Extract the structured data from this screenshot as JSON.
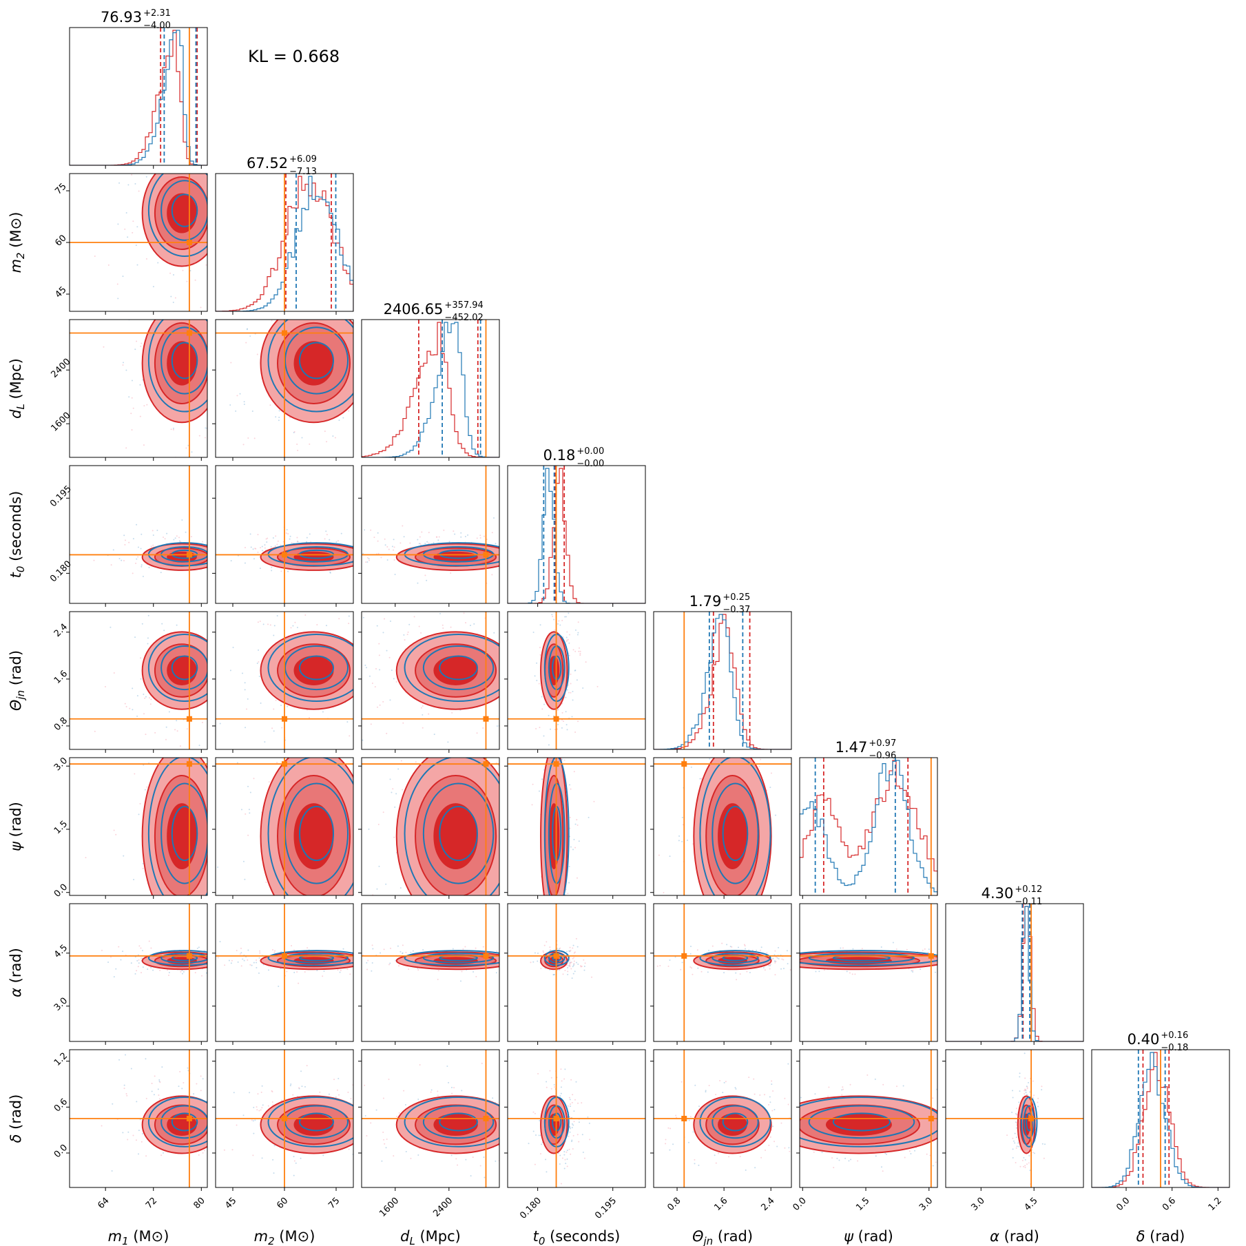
{
  "kl_text": "KL = 0.668",
  "colors": {
    "red": "#d62728",
    "blue": "#1f77b4",
    "truth": "#ff7f0e",
    "red_light": "#f4a6a6",
    "red_mid": "#e87777"
  },
  "chart_data": {
    "type": "corner",
    "kl": 0.668,
    "parameters": [
      {
        "key": "m1",
        "label": "m1 (M⊙)",
        "symbol": "m",
        "sub": "1",
        "unit": "(M⊙)",
        "range": [
          58,
          81
        ],
        "ticks": [
          64,
          72,
          80
        ],
        "tick_labels": [
          "64",
          "72",
          "80"
        ],
        "truth": 78.0
      },
      {
        "key": "m2",
        "label": "m2 (M⊙)",
        "symbol": "m",
        "sub": "2",
        "unit": "(M⊙)",
        "range": [
          40,
          80
        ],
        "ticks": [
          45,
          60,
          75
        ],
        "tick_labels": [
          "45",
          "60",
          "75"
        ],
        "truth": 60.0
      },
      {
        "key": "dL",
        "label": "dL (Mpc)",
        "symbol": "d",
        "sub": "L",
        "unit": "(Mpc)",
        "range": [
          1100,
          3150
        ],
        "ticks": [
          1600,
          2400
        ],
        "tick_labels": [
          "1600",
          "2400"
        ],
        "truth": 2950
      },
      {
        "key": "t0",
        "label": "t0 (seconds)",
        "symbol": "t",
        "sub": "0",
        "unit": "(seconds)",
        "range": [
          0.174,
          0.2015
        ],
        "ticks": [
          0.18,
          0.195
        ],
        "tick_labels": [
          "0.180",
          "0.195"
        ],
        "truth": 0.1837
      },
      {
        "key": "theta",
        "label": "Θjn (rad)",
        "symbol": "Θ",
        "sub": "jn",
        "unit": "(rad)",
        "range": [
          0.4,
          2.75
        ],
        "ticks": [
          0.8,
          1.6,
          2.4
        ],
        "tick_labels": [
          "0.8",
          "1.6",
          "2.4"
        ],
        "truth": 0.92
      },
      {
        "key": "psi",
        "label": "ψ (rad)",
        "symbol": "ψ",
        "sub": "",
        "unit": "(rad)",
        "range": [
          -0.07,
          3.2
        ],
        "ticks": [
          0.0,
          1.5,
          3.0
        ],
        "tick_labels": [
          "0.0",
          "1.5",
          "3.0"
        ],
        "truth": 3.05
      },
      {
        "key": "alpha",
        "label": "α (rad)",
        "symbol": "α",
        "sub": "",
        "unit": "(rad)",
        "range": [
          2.0,
          5.9
        ],
        "ticks": [
          3.0,
          4.5
        ],
        "tick_labels": [
          "3.0",
          "4.5"
        ],
        "truth": 4.42
      },
      {
        "key": "delta",
        "label": "δ (rad)",
        "symbol": "δ",
        "sub": "",
        "unit": "(rad)",
        "range": [
          -0.45,
          1.35
        ],
        "ticks": [
          0.0,
          0.6,
          1.2
        ],
        "tick_labels": [
          "0.0",
          "0.6",
          "1.2"
        ],
        "truth": 0.45
      }
    ],
    "titles": [
      {
        "median": "76.93",
        "plus": "+2.31",
        "minus": "−4.00"
      },
      {
        "median": "67.52",
        "plus": "+6.09",
        "minus": "−7.13"
      },
      {
        "median": "2406.65",
        "plus": "+357.94",
        "minus": "−452.02"
      },
      {
        "median": "0.18",
        "plus": "+0.00",
        "minus": "−0.00"
      },
      {
        "median": "1.79",
        "plus": "+0.25",
        "minus": "−0.37"
      },
      {
        "median": "1.47",
        "plus": "+0.97",
        "minus": "−0.96"
      },
      {
        "median": "4.30",
        "plus": "+0.12",
        "minus": "−0.11"
      },
      {
        "median": "0.40",
        "plus": "+0.16",
        "minus": "−0.18"
      }
    ],
    "quantiles": {
      "red": [
        [
          73.2,
          79.3
        ],
        [
          60.4,
          73.6
        ],
        [
          1950,
          2830
        ],
        [
          0.1835,
          0.1853
        ],
        [
          1.42,
          2.04
        ],
        [
          0.5,
          2.5
        ],
        [
          4.19,
          4.42
        ],
        [
          0.22,
          0.56
        ]
      ],
      "blue": [
        [
          73.8,
          79.1
        ],
        [
          63.4,
          74.9
        ],
        [
          2300,
          2870
        ],
        [
          0.1812,
          0.1833
        ],
        [
          1.35,
          1.92
        ],
        [
          0.3,
          2.2
        ],
        [
          4.17,
          4.38
        ],
        [
          0.16,
          0.51
        ]
      ]
    },
    "posteriors": {
      "red": [
        {
          "mean": 76.5,
          "sd": 3.0,
          "skew": -4.0
        },
        {
          "mean": 67.5,
          "sd": 7.0
        },
        {
          "mean": 2400,
          "sd": 400,
          "skew": -3.0
        },
        {
          "mean": 0.1843,
          "sd": 0.0012
        },
        {
          "mean": 1.79,
          "sd": 0.3,
          "skew": -2.0
        },
        {
          "mean": 1.47,
          "sd": 0.96,
          "modes": [
            [
              0.5,
              0.5
            ],
            [
              2.0,
              0.5
            ],
            [
              2.6,
              0.3
            ]
          ]
        },
        {
          "mean": 4.3,
          "sd": 0.11
        },
        {
          "mean": 0.4,
          "sd": 0.17
        }
      ],
      "blue": [
        {
          "mean": 77.0,
          "sd": 2.7,
          "skew": -4.0
        },
        {
          "mean": 69.5,
          "sd": 6.0
        },
        {
          "mean": 2600,
          "sd": 300,
          "skew": -3.0
        },
        {
          "mean": 0.1822,
          "sd": 0.0011
        },
        {
          "mean": 1.7,
          "sd": 0.3,
          "skew": -2.0
        },
        {
          "mean": 1.2,
          "sd": 0.9,
          "modes": [
            [
              0.1,
              0.7
            ],
            [
              2.1,
              0.9
            ]
          ]
        },
        {
          "mean": 4.27,
          "sd": 0.1
        },
        {
          "mean": 0.34,
          "sd": 0.17
        }
      ]
    },
    "truth_color": "orange",
    "series": [
      {
        "color": "red"
      },
      {
        "color": "blue"
      }
    ]
  }
}
